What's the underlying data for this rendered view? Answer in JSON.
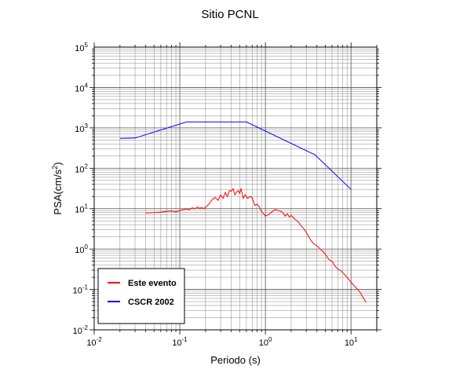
{
  "chart_data": {
    "type": "line",
    "title": "Sitio PCNL",
    "xlabel": "Periodo (s)",
    "ylabel": "PSA(cm/s",
    "ylabel_sup": "2",
    "ylabel_close": ")",
    "xscale": "log",
    "yscale": "log",
    "xlim": [
      0.01,
      20
    ],
    "ylim": [
      0.01,
      100000
    ],
    "grid": true,
    "legend_position": "bottom-left",
    "x_ticks": [
      {
        "base": "10",
        "exp": "-2"
      },
      {
        "base": "10",
        "exp": "-1"
      },
      {
        "base": "10",
        "exp": "0"
      },
      {
        "base": "10",
        "exp": "1"
      }
    ],
    "y_ticks": [
      {
        "base": "10",
        "exp": "-2"
      },
      {
        "base": "10",
        "exp": "-1"
      },
      {
        "base": "10",
        "exp": "0"
      },
      {
        "base": "10",
        "exp": "1"
      },
      {
        "base": "10",
        "exp": "2"
      },
      {
        "base": "10",
        "exp": "3"
      },
      {
        "base": "10",
        "exp": "4"
      },
      {
        "base": "10",
        "exp": "5"
      }
    ],
    "series": [
      {
        "name": "Este evento",
        "color": "#ff0000",
        "x": [
          0.04,
          0.05,
          0.06,
          0.07,
          0.08,
          0.09,
          0.1,
          0.11,
          0.12,
          0.13,
          0.14,
          0.15,
          0.16,
          0.17,
          0.18,
          0.19,
          0.2,
          0.22,
          0.24,
          0.26,
          0.28,
          0.3,
          0.32,
          0.34,
          0.36,
          0.38,
          0.4,
          0.42,
          0.44,
          0.46,
          0.48,
          0.5,
          0.52,
          0.55,
          0.58,
          0.62,
          0.66,
          0.7,
          0.75,
          0.8,
          0.85,
          0.9,
          0.95,
          1.0,
          1.1,
          1.2,
          1.3,
          1.4,
          1.5,
          1.6,
          1.7,
          1.8,
          1.9,
          2.0,
          2.2,
          2.4,
          2.6,
          2.8,
          3.0,
          3.3,
          3.6,
          4.0,
          4.5,
          5.0,
          5.5,
          6.0,
          6.5,
          7.0,
          7.5,
          8.0,
          9.0,
          10.0,
          11.0,
          12.0,
          13.0,
          14.0,
          15.0
        ],
        "y": [
          7.8,
          8.0,
          8.2,
          8.5,
          8.7,
          8.3,
          9.0,
          9.5,
          9.8,
          9.5,
          10.5,
          9.8,
          11.0,
          10.2,
          10.6,
          10.0,
          11.0,
          13.0,
          17.0,
          19.0,
          16.0,
          22.0,
          18.0,
          25.0,
          20.0,
          28.0,
          27.0,
          31.0,
          22.0,
          26.0,
          28.0,
          24.0,
          31.0,
          18.0,
          22.0,
          18.0,
          20.0,
          19.0,
          12.0,
          13.0,
          11.0,
          8.5,
          7.5,
          6.5,
          7.2,
          8.5,
          9.5,
          9.0,
          8.7,
          8.0,
          6.5,
          7.5,
          6.2,
          6.8,
          5.5,
          4.8,
          3.8,
          3.2,
          2.6,
          1.8,
          1.4,
          1.2,
          0.95,
          0.75,
          0.55,
          0.5,
          0.38,
          0.32,
          0.3,
          0.26,
          0.2,
          0.15,
          0.12,
          0.1,
          0.08,
          0.06,
          0.048
        ]
      },
      {
        "name": "CSCR 2002",
        "color": "#0000ff",
        "x": [
          0.02,
          0.03,
          0.12,
          0.6,
          3.8,
          10.0
        ],
        "y": [
          550,
          560,
          1400,
          1400,
          215,
          30
        ]
      }
    ]
  }
}
